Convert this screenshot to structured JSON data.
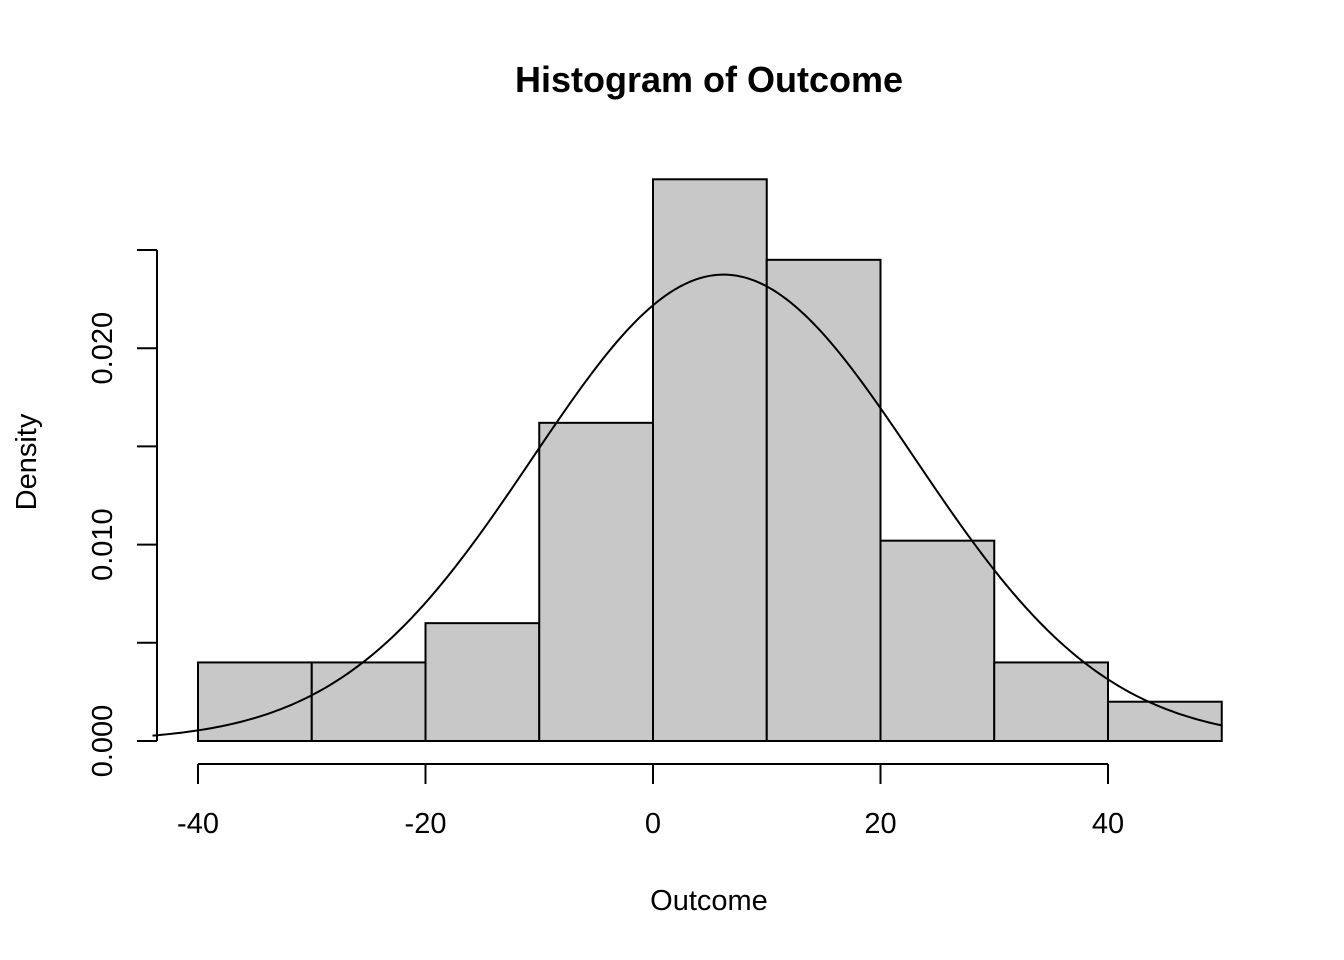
{
  "chart_data": {
    "type": "bar",
    "title": "Histogram of Outcome",
    "xlabel": "Outcome",
    "ylabel": "Density",
    "bin_edges": [
      -40,
      -30,
      -20,
      -10,
      0,
      10,
      20,
      30,
      40,
      50
    ],
    "values": [
      0.004,
      0.004,
      0.006,
      0.0162,
      0.0286,
      0.0245,
      0.0102,
      0.004,
      0.002
    ],
    "xlim": [
      -44,
      50
    ],
    "ylim": [
      0,
      0.025
    ],
    "x_ticks": [
      -40,
      -20,
      0,
      20,
      40
    ],
    "x_tick_labels": [
      "-40",
      "-20",
      "0",
      "20",
      "40"
    ],
    "y_ticks": [
      0,
      0.005,
      0.01,
      0.015,
      0.02,
      0.025
    ],
    "y_tick_labels": [
      "0.000",
      "",
      "0.010",
      "",
      "0.020",
      ""
    ],
    "bar_fill": "#c8c8c8",
    "bar_stroke": "#000000",
    "curve": {
      "type": "normal-density",
      "mean": 6.2,
      "sd": 16.8,
      "x_range": [
        -44,
        50
      ]
    },
    "grid": false,
    "legend": "none"
  }
}
